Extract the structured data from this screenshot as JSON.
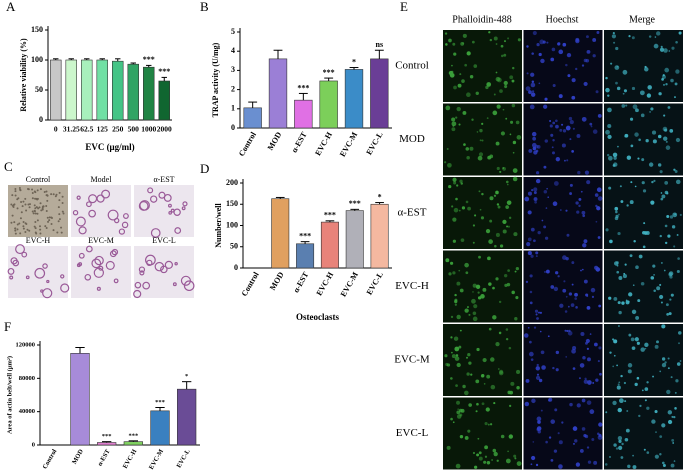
{
  "chart_data": [
    {
      "type": "bar",
      "label": "A",
      "ylabel": "Relative viability (%)",
      "xlabel": "EVC (μg/ml)",
      "categories": [
        "0",
        "31.25",
        "62.5",
        "125",
        "250",
        "500",
        "1000",
        "2000"
      ],
      "values": [
        100,
        100,
        100,
        100,
        98,
        93,
        88,
        65
      ],
      "errors": [
        2,
        2,
        2,
        2,
        4,
        2,
        3,
        6
      ],
      "annotations": [
        null,
        null,
        null,
        null,
        null,
        null,
        "***",
        "***"
      ],
      "colors": [
        "#c8c8c8",
        "#ccf7cc",
        "#a8f0bc",
        "#70e0a4",
        "#44c486",
        "#30a464",
        "#208444",
        "#106630"
      ],
      "ylim": [
        0,
        150
      ],
      "yticks": [
        0,
        50,
        100,
        150
      ]
    },
    {
      "type": "bar",
      "label": "B",
      "ylabel": "TRAP activity (U/mg)",
      "xlabel": null,
      "categories": [
        "Control",
        "MOD",
        "α-EST",
        "EVC-H",
        "EVC-M",
        "EVC-L"
      ],
      "values": [
        1.05,
        3.6,
        1.45,
        2.45,
        3.05,
        3.6
      ],
      "errors": [
        0.3,
        0.45,
        0.35,
        0.15,
        0.1,
        0.45
      ],
      "annotations": [
        null,
        null,
        "***",
        "***",
        "*",
        "ns"
      ],
      "colors": [
        "#6a8fd0",
        "#9b7fd6",
        "#e070e4",
        "#7ccf5a",
        "#3b8cc8",
        "#6a3e96"
      ],
      "ylim": [
        0,
        5
      ],
      "yticks": [
        0,
        1,
        2,
        3,
        4,
        5
      ]
    },
    {
      "type": "bar",
      "label": "D",
      "ylabel": "Number/well",
      "xlabel": "Osteoclasts",
      "categories": [
        "Control",
        "MOD",
        "α-EST",
        "EVC-H",
        "EVC-M",
        "EVC-L"
      ],
      "values": [
        0,
        163,
        57,
        108,
        135,
        150
      ],
      "errors": [
        0,
        3,
        5,
        3,
        3,
        4
      ],
      "annotations": [
        null,
        null,
        "***",
        "***",
        "***",
        "*"
      ],
      "colors": [
        "#ffffff",
        "#e0a060",
        "#5a7fb0",
        "#e8837a",
        "#b0b0b8",
        "#f4b8a0"
      ],
      "ylim": [
        0,
        200
      ],
      "yticks": [
        0,
        50,
        100,
        150,
        200
      ]
    },
    {
      "type": "bar",
      "label": "F",
      "ylabel": "Area of actin belt/well (μm²)",
      "xlabel": null,
      "categories": [
        "Control",
        "MOD",
        "α-EST",
        "EVC-H",
        "EVC-M",
        "EVC-L"
      ],
      "values": [
        0,
        110000,
        3000,
        4000,
        41000,
        67000
      ],
      "errors": [
        0,
        7000,
        1000,
        1000,
        4000,
        9000
      ],
      "annotations": [
        null,
        null,
        "***",
        "***",
        "***",
        "*"
      ],
      "colors": [
        "#ffffff",
        "#a78bd9",
        "#e080d0",
        "#7fd060",
        "#3a80c0",
        "#6a4c96"
      ],
      "ylim": [
        0,
        120000
      ],
      "yticks": [
        0,
        40000,
        80000,
        120000
      ]
    }
  ],
  "panels": {
    "C": {
      "label": "C",
      "images": [
        "Control",
        "Model",
        "α-EST",
        "EVC-H",
        "EVC-M",
        "EVC-L"
      ]
    },
    "E": {
      "label": "E",
      "columns": [
        "Phalloidin-488",
        "Hoechst",
        "Merge"
      ],
      "rows": [
        "Control",
        "MOD",
        "α-EST",
        "EVC-H",
        "EVC-M",
        "EVC-L"
      ]
    }
  }
}
